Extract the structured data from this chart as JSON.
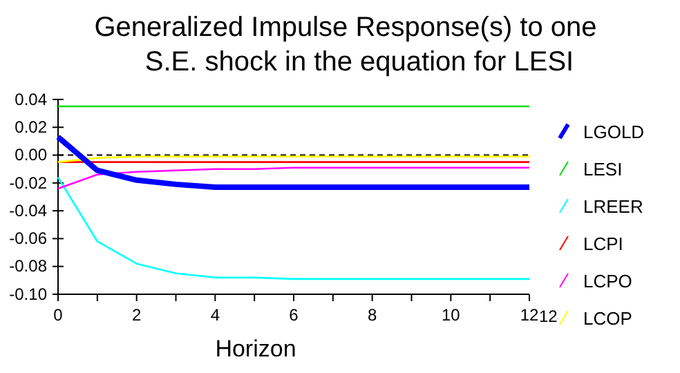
{
  "chart_data": {
    "type": "line",
    "title": "Generalized Impulse Response(s) to one\nS.E. shock in the equation for LESI",
    "xlabel": "Horizon",
    "x": [
      0,
      1,
      2,
      3,
      4,
      5,
      6,
      7,
      8,
      9,
      10,
      11,
      12
    ],
    "xlim": [
      0,
      12
    ],
    "xticks": [
      0,
      {
        "value": 1,
        "label": null
      },
      2,
      {
        "value": 3,
        "label": null
      },
      4,
      {
        "value": 5,
        "label": null
      },
      6,
      {
        "value": 7,
        "label": null
      },
      8,
      {
        "value": 9,
        "label": null
      },
      10,
      {
        "value": 11,
        "label": null
      },
      12
    ],
    "ylim": [
      -0.1,
      0.04
    ],
    "yticks": [
      {
        "value": -0.1,
        "label": "-0.10"
      },
      {
        "value": -0.08,
        "label": "-0.08"
      },
      {
        "value": -0.06,
        "label": "-0.06"
      },
      {
        "value": -0.04,
        "label": "-0.04"
      },
      {
        "value": -0.02,
        "label": "-0.02"
      },
      {
        "value": 0,
        "label": "0.00"
      },
      {
        "value": 0.02,
        "label": "0.02"
      },
      {
        "value": 0.04,
        "label": "0.04"
      }
    ],
    "ref_lines": [
      {
        "axis": "y",
        "value": 0,
        "color": "#000000",
        "line_style": "dashed"
      }
    ],
    "annotations": [
      "12"
    ],
    "legend": "right",
    "marker": "none",
    "line_style": "solid",
    "grid": false,
    "series": [
      {
        "name": "LGOLD",
        "color": "#0000ff",
        "values": [
          0.013,
          -0.011,
          -0.018,
          -0.021,
          -0.023,
          -0.023,
          -0.023,
          -0.023,
          -0.023,
          -0.023,
          -0.023,
          -0.023,
          -0.023
        ]
      },
      {
        "name": "LESI",
        "color": "#00dd00",
        "values": [
          0.035,
          0.035,
          0.035,
          0.035,
          0.035,
          0.035,
          0.035,
          0.035,
          0.035,
          0.035,
          0.035,
          0.035,
          0.035
        ]
      },
      {
        "name": "LREER",
        "color": "#00ffff",
        "values": [
          -0.016,
          -0.062,
          -0.078,
          -0.085,
          -0.088,
          -0.088,
          -0.089,
          -0.089,
          -0.089,
          -0.089,
          -0.089,
          -0.089,
          -0.089
        ]
      },
      {
        "name": "LCPI",
        "color": "#ff0000",
        "values": [
          -0.005,
          -0.005,
          -0.005,
          -0.005,
          -0.005,
          -0.005,
          -0.005,
          -0.005,
          -0.005,
          -0.005,
          -0.005,
          -0.005,
          -0.005
        ]
      },
      {
        "name": "LCPO",
        "color": "#ff00ff",
        "values": [
          -0.024,
          -0.014,
          -0.012,
          -0.011,
          -0.01,
          -0.01,
          -0.009,
          -0.009,
          -0.009,
          -0.009,
          -0.009,
          -0.009,
          -0.009
        ]
      },
      {
        "name": "LCOP",
        "color": "#ffff00",
        "values": [
          -0.005,
          -0.002,
          -0.001,
          -0.001,
          -0.001,
          -0.001,
          -0.001,
          -0.001,
          -0.001,
          -0.001,
          -0.001,
          -0.001,
          -0.001
        ]
      }
    ]
  }
}
